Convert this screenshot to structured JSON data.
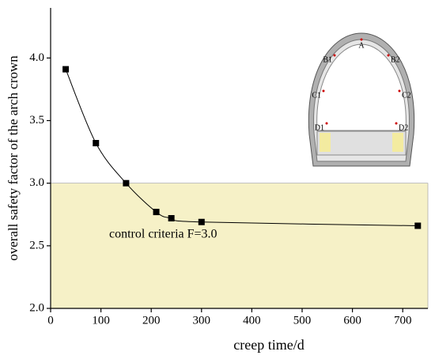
{
  "chart_data": {
    "type": "line",
    "xlabel": "creep time/d",
    "ylabel": "overall safety factor of the arch crown",
    "series": [
      {
        "name": "overall safety factor",
        "color": "#000000",
        "x": [
          30,
          90,
          150,
          210,
          240,
          300,
          730
        ],
        "values": [
          3.91,
          3.32,
          3.0,
          2.77,
          2.72,
          2.69,
          2.66
        ]
      }
    ],
    "xlim": [
      0,
      750
    ],
    "xticks": [
      0,
      100,
      200,
      300,
      400,
      500,
      600,
      700
    ],
    "ylim": [
      2.0,
      4.4
    ],
    "yticks": [
      {
        "value": 2.0,
        "label": "2.0"
      },
      {
        "value": 2.5,
        "label": "2.5"
      },
      {
        "value": 3.0,
        "label": "3.0"
      },
      {
        "value": 3.5,
        "label": "3.5"
      },
      {
        "value": 4.0,
        "label": "4.0"
      }
    ],
    "threshold": 3.0,
    "threshold_color": "#f6f1c7",
    "annotation": "control criteria F=3.0",
    "inset_labels": [
      "A",
      "B1",
      "B2",
      "C1",
      "C2",
      "D1",
      "D2"
    ]
  }
}
